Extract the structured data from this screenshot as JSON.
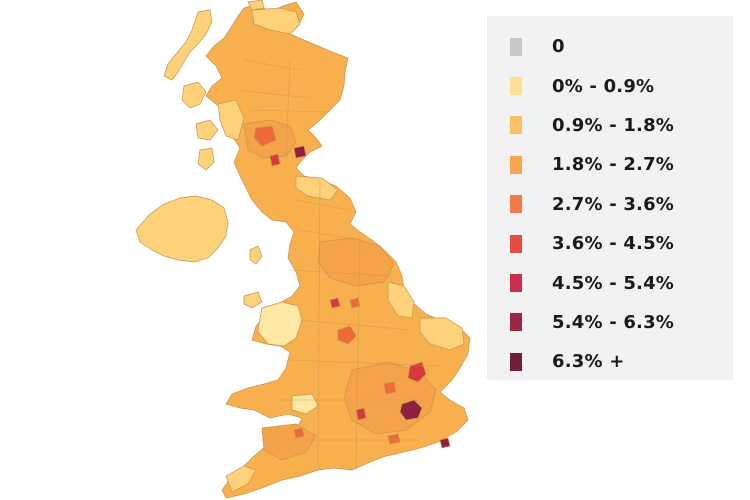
{
  "legend": {
    "items": [
      {
        "label": "0",
        "color": "#c8c8c8"
      },
      {
        "label": "0% - 0.9%",
        "color": "#fde08f"
      },
      {
        "label": "0.9% - 1.8%",
        "color": "#fcc064"
      },
      {
        "label": "1.8% - 2.7%",
        "color": "#f9a54e"
      },
      {
        "label": "2.7% - 3.6%",
        "color": "#f47a45"
      },
      {
        "label": "3.6% - 4.5%",
        "color": "#e84b3f"
      },
      {
        "label": "4.5% - 5.4%",
        "color": "#c82e4e"
      },
      {
        "label": "5.4% - 6.3%",
        "color": "#9a2745"
      },
      {
        "label": "6.3% +",
        "color": "#6e1f3a"
      }
    ]
  },
  "map": {
    "region_colors": {
      "base": "#f8b04e",
      "light": "#fdd27a",
      "pale": "#fde8a4",
      "mid": "#f5a34a",
      "hot": "#ee6a38",
      "hotter": "#d63a3a",
      "hottest": "#8e2040",
      "border": "#c9934a"
    }
  }
}
